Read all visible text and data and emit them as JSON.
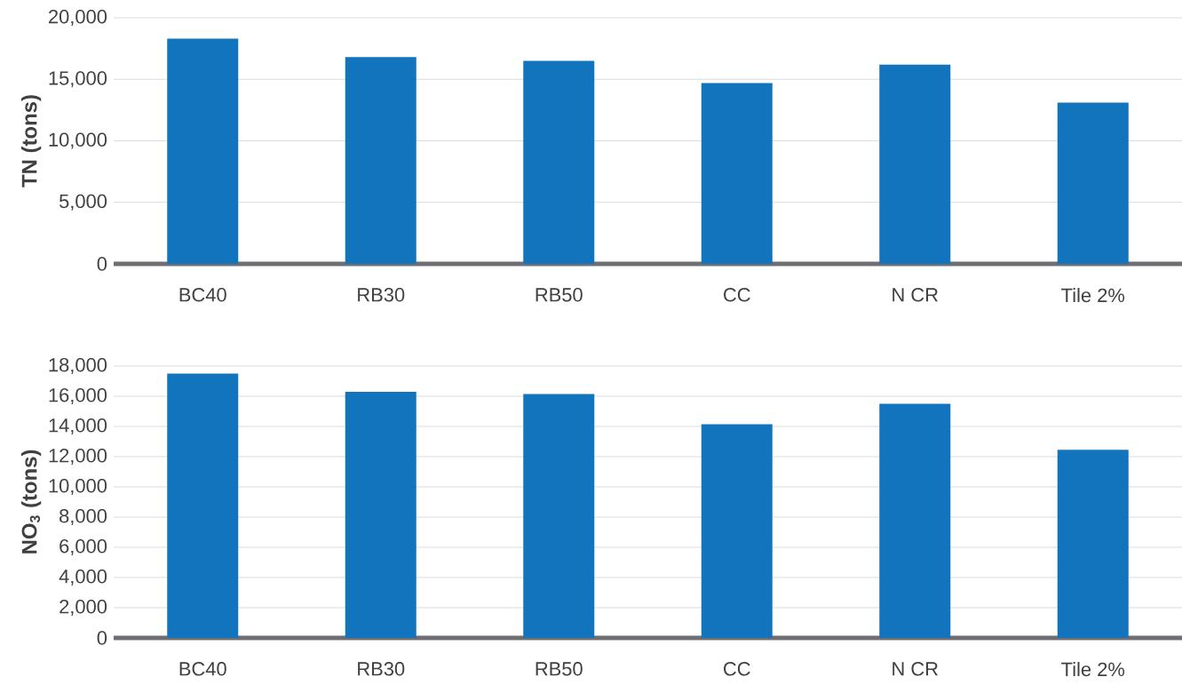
{
  "chart_data": [
    {
      "type": "bar",
      "ylabel": "TN (tons)",
      "categories": [
        "BC40",
        "RB30",
        "RB50",
        "CC",
        "N CR",
        "Tile 2%"
      ],
      "values": [
        18300,
        16800,
        16500,
        14700,
        16200,
        13100
      ],
      "color": "#1174bd",
      "ylim": [
        0,
        20000
      ],
      "yticks": [
        {
          "value": 0,
          "label": "0"
        },
        {
          "value": 5000,
          "label": "5,000"
        },
        {
          "value": 10000,
          "label": "10,000"
        },
        {
          "value": 15000,
          "label": "15,000"
        },
        {
          "value": 20000,
          "label": "20,000"
        }
      ],
      "grid": "y"
    },
    {
      "type": "bar",
      "ylabel": "NO$_{3}$ (tons)",
      "categories": [
        "BC40",
        "RB30",
        "RB50",
        "CC",
        "N CR",
        "Tile 2%"
      ],
      "values": [
        17500,
        16300,
        16150,
        14150,
        15500,
        12450
      ],
      "color": "#1174bd",
      "ylim": [
        0,
        18000
      ],
      "yticks": [
        {
          "value": 0,
          "label": "0"
        },
        {
          "value": 2000,
          "label": "2,000"
        },
        {
          "value": 4000,
          "label": "4,000"
        },
        {
          "value": 6000,
          "label": "6,000"
        },
        {
          "value": 8000,
          "label": "8,000"
        },
        {
          "value": 10000,
          "label": "10,000"
        },
        {
          "value": 12000,
          "label": "12,000"
        },
        {
          "value": 14000,
          "label": "14,000"
        },
        {
          "value": 16000,
          "label": "16,000"
        },
        {
          "value": 18000,
          "label": "18,000"
        }
      ],
      "grid": "y"
    }
  ]
}
